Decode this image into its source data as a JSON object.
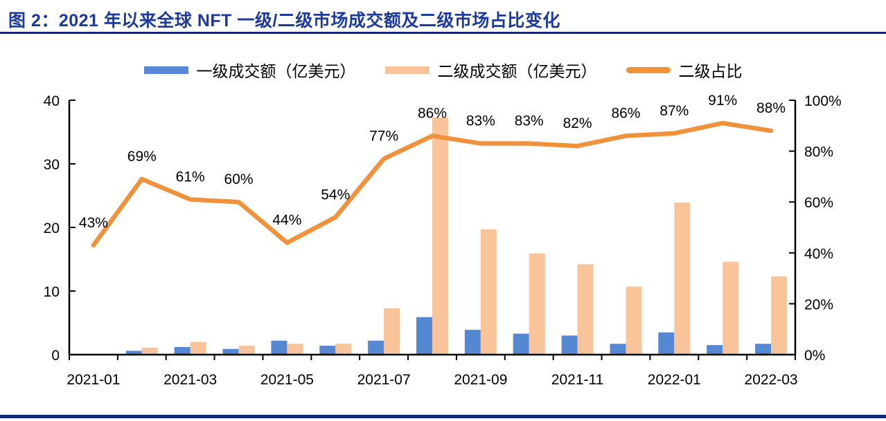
{
  "header": {
    "title": "图 2：2021 年以来全球 NFT 一级/二级市场成交额及二级市场占比变化"
  },
  "legend": [
    {
      "label": "一级成交额（亿美元）",
      "swatch": "bar",
      "color": "#5588D2"
    },
    {
      "label": "二级成交额（亿美元）",
      "swatch": "bar",
      "color": "#F9C499"
    },
    {
      "label": "二级占比",
      "swatch": "line",
      "color": "#F0913C"
    }
  ],
  "colors": {
    "primary_bar": "#5588D2",
    "secondary_bar": "#F9C499",
    "share_line": "#F0913C",
    "axis": "#000000",
    "title_text": "#1C3A9C",
    "rule": "#0D2A6E"
  },
  "chart_data": {
    "type": "bar+line",
    "title": "2021 年以来全球 NFT 一级/二级市场成交额及二级市场占比变化",
    "categories": [
      "2021-01",
      "2021-02",
      "2021-03",
      "2021-04",
      "2021-05",
      "2021-06",
      "2021-07",
      "2021-08",
      "2021-09",
      "2021-10",
      "2021-11",
      "2021-12",
      "2022-01",
      "2022-02",
      "2022-03"
    ],
    "x_tick_labels": [
      "2021-01",
      "2021-03",
      "2021-05",
      "2021-07",
      "2021-09",
      "2021-11",
      "2022-01",
      "2022-03"
    ],
    "series": [
      {
        "name": "一级成交额（亿美元）",
        "type": "bar",
        "axis": "left",
        "color": "#5588D2",
        "values": [
          0.1,
          0.6,
          1.2,
          0.9,
          2.2,
          1.4,
          2.2,
          5.9,
          3.9,
          3.3,
          3.0,
          1.7,
          3.5,
          1.5,
          1.7
        ]
      },
      {
        "name": "二级成交额（亿美元）",
        "type": "bar",
        "axis": "left",
        "color": "#F9C499",
        "values": [
          0.08,
          1.1,
          2.0,
          1.4,
          1.7,
          1.7,
          7.3,
          37.3,
          19.7,
          15.9,
          14.2,
          10.7,
          23.9,
          14.6,
          12.3
        ]
      },
      {
        "name": "二级占比",
        "type": "line",
        "axis": "right",
        "color": "#F0913C",
        "values": [
          43,
          69,
          61,
          60,
          44,
          54,
          77,
          86,
          83,
          83,
          82,
          86,
          87,
          91,
          88
        ],
        "labels": [
          "43%",
          "69%",
          "61%",
          "60%",
          "44%",
          "54%",
          "77%",
          "86%",
          "83%",
          "83%",
          "82%",
          "86%",
          "87%",
          "91%",
          "88%"
        ]
      }
    ],
    "left_axis": {
      "range": [
        0,
        40
      ],
      "ticks": [
        0,
        10,
        20,
        30,
        40
      ]
    },
    "right_axis": {
      "range": [
        0,
        100
      ],
      "ticks": [
        0,
        20,
        40,
        60,
        80,
        100
      ],
      "tick_labels": [
        "0%",
        "20%",
        "40%",
        "60%",
        "80%",
        "100%"
      ]
    },
    "grid": false,
    "legend_position": "top"
  }
}
